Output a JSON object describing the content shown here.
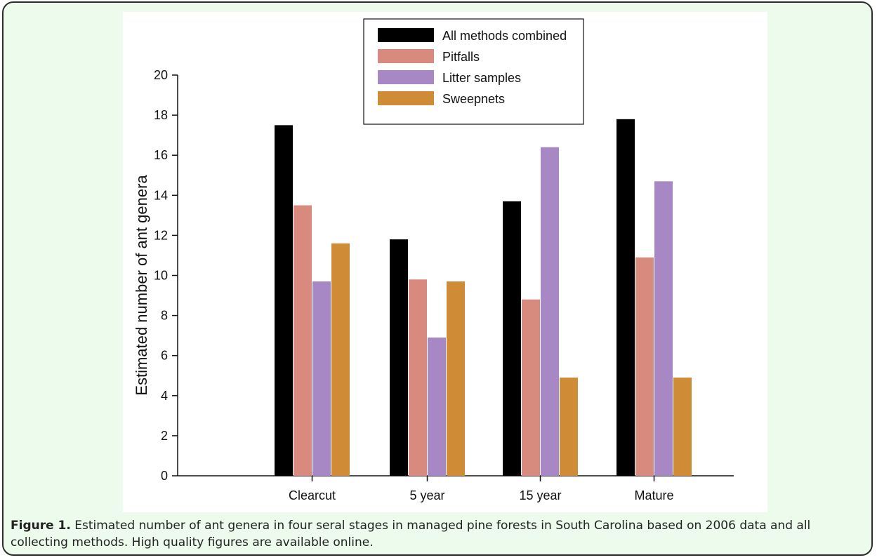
{
  "figure": {
    "label": "Figure 1.",
    "caption": " Estimated number of ant genera in four seral stages in managed pine forests in South Carolina based on 2006 data and all collecting methods. High quality figures are available online."
  },
  "chart_data": {
    "type": "bar",
    "title": "",
    "xlabel": "",
    "ylabel": "Estimated number of ant genera",
    "categories": [
      "Clearcut",
      "5 year",
      "15 year",
      "Mature"
    ],
    "ylim": [
      0,
      20
    ],
    "yticks": [
      0,
      2,
      4,
      6,
      8,
      10,
      12,
      14,
      16,
      18,
      20
    ],
    "grid": false,
    "legend_position": "top-center",
    "series": [
      {
        "name": "All methods combined",
        "color": "#000000",
        "values": [
          17.5,
          11.8,
          13.7,
          17.8
        ]
      },
      {
        "name": "Pitfalls",
        "color": "#d88a7f",
        "values": [
          13.5,
          9.8,
          8.8,
          10.9
        ]
      },
      {
        "name": "Litter samples",
        "color": "#a888c4",
        "values": [
          9.7,
          6.9,
          16.4,
          14.7
        ]
      },
      {
        "name": "Sweepnets",
        "color": "#cf8b35",
        "values": [
          11.6,
          9.7,
          4.9,
          4.9
        ]
      }
    ]
  }
}
